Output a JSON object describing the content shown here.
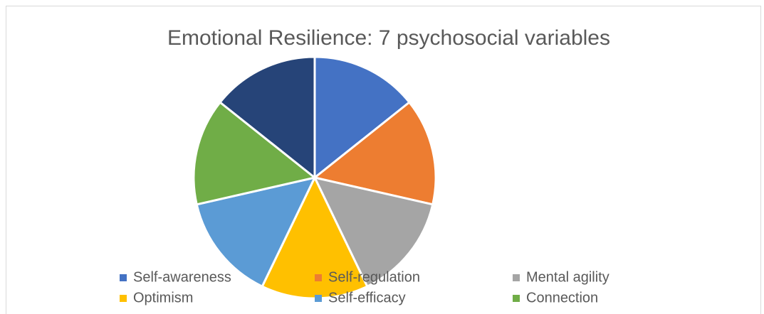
{
  "chart_data": {
    "type": "pie",
    "title": "Emotional Resilience: 7 psychosocial variables",
    "categories": [
      "Self-awareness",
      "Self-regulation",
      "Mental agility",
      "Optimism",
      "Self-efficacy",
      "Connection",
      null
    ],
    "values": [
      1,
      1,
      1,
      1,
      1,
      1,
      1
    ],
    "colors": [
      "#4472c4",
      "#ed7d31",
      "#a5a5a5",
      "#ffc000",
      "#5b9bd5",
      "#70ad47",
      "#264478"
    ],
    "legend": "bottom"
  }
}
